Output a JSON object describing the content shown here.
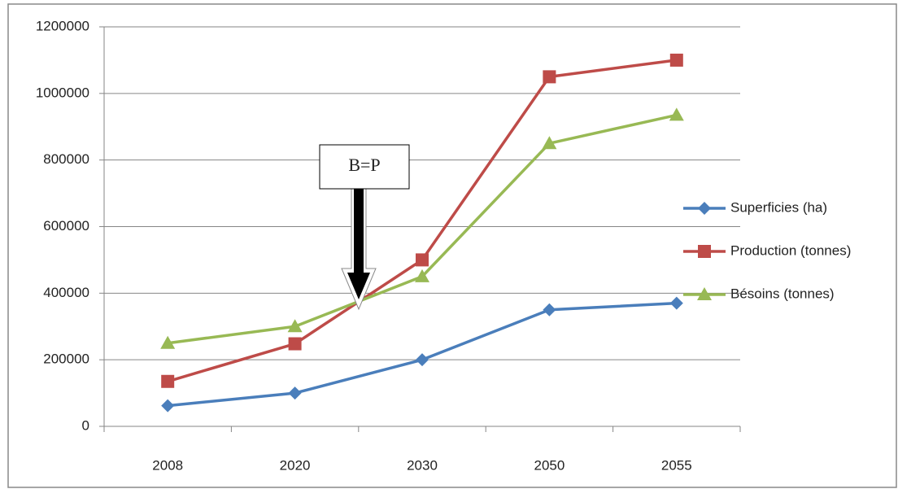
{
  "chart_data": {
    "type": "line",
    "categories": [
      "2008",
      "2020",
      "2030",
      "2050",
      "2055"
    ],
    "series": [
      {
        "name": "Superficies (ha)",
        "color": "#4a7ebb",
        "marker": "diamond",
        "values": [
          62000,
          100000,
          200000,
          350000,
          370000
        ]
      },
      {
        "name": "Production (tonnes)",
        "color": "#be4b48",
        "marker": "square",
        "values": [
          135000,
          248000,
          500000,
          1050000,
          1100000
        ]
      },
      {
        "name": "Bésoins (tonnes)",
        "color": "#98b954",
        "marker": "triangle",
        "values": [
          250000,
          300000,
          450000,
          850000,
          935000
        ]
      }
    ],
    "ylim": [
      0,
      1200000
    ],
    "yticks": [
      0,
      200000,
      400000,
      600000,
      800000,
      1000000,
      1200000
    ],
    "grid": true,
    "legend": "right",
    "annotation": "B=P"
  }
}
